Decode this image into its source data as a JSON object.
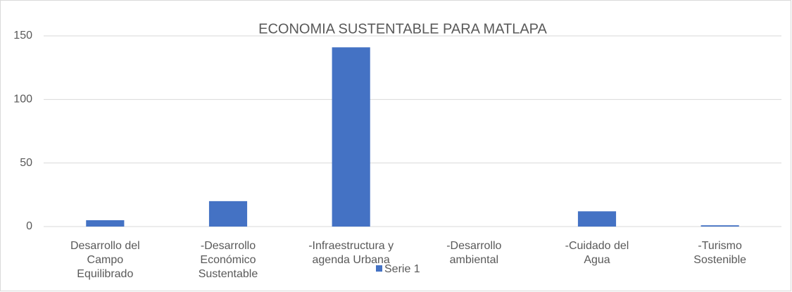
{
  "chart_data": {
    "type": "bar",
    "title": "ECONOMIA SUSTENTABLE PARA MATLAPA",
    "categories": [
      "Desarrollo del\nCampo\nEquilibrado",
      "-Desarrollo\nEconómico\nSustentable",
      "-Infraestructura y\nagenda Urbana",
      "-Desarrollo\nambiental",
      "-Cuidado del\nAgua",
      "-Turismo\nSostenible"
    ],
    "series": [
      {
        "name": "Serie 1",
        "color": "#4472c4",
        "values": [
          5,
          20,
          141,
          0,
          12,
          1
        ]
      }
    ],
    "ylim": [
      0,
      150
    ],
    "yticks": [
      0,
      50,
      100,
      150
    ],
    "grid": true,
    "legend": "bottom"
  }
}
